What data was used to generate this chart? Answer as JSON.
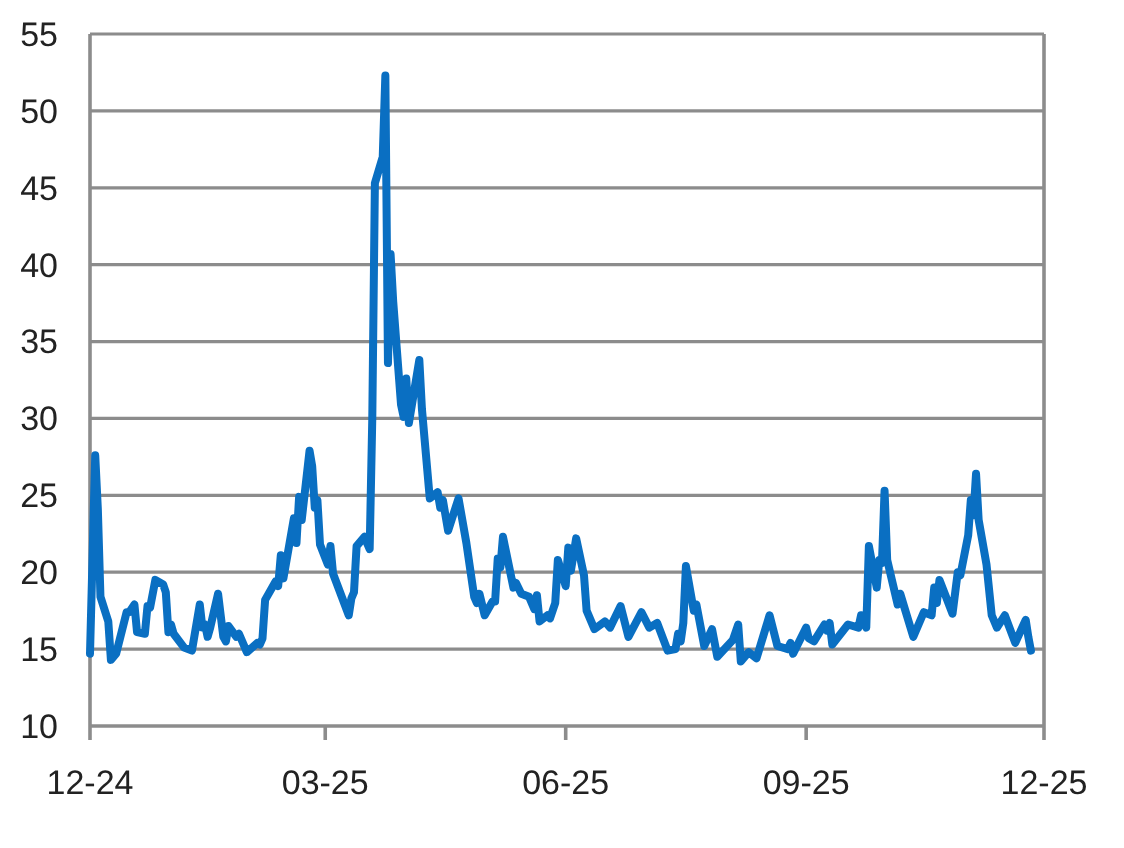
{
  "chart_data": {
    "type": "line",
    "grid": "y",
    "xlim": [
      "2024-12-16",
      "2025-12-16"
    ],
    "xticks": [
      {
        "value": "2024-12-16",
        "label": "12-24"
      },
      {
        "value": "2025-03-16",
        "label": "03-25"
      },
      {
        "value": "2025-06-16",
        "label": "06-25"
      },
      {
        "value": "2025-09-16",
        "label": "09-25"
      },
      {
        "value": "2025-12-16",
        "label": "12-25"
      }
    ],
    "ylim": [
      10,
      55
    ],
    "yticks": [
      10,
      15,
      20,
      25,
      30,
      35,
      40,
      45,
      50,
      55
    ],
    "series": [
      {
        "color": "#0a6fc2",
        "x": [
          "2024-12-16",
          "2024-12-18",
          "2024-12-19",
          "2024-12-20",
          "2024-12-23",
          "2024-12-24",
          "2024-12-26",
          "2024-12-30",
          "2024-12-31",
          "2025-01-02",
          "2025-01-03",
          "2025-01-06",
          "2025-01-07",
          "2025-01-08",
          "2025-01-10",
          "2025-01-13",
          "2025-01-14",
          "2025-01-15",
          "2025-01-16",
          "2025-01-17",
          "2025-01-21",
          "2025-01-24",
          "2025-01-27",
          "2025-01-28",
          "2025-01-29",
          "2025-01-30",
          "2025-01-31",
          "2025-02-03",
          "2025-02-05",
          "2025-02-06",
          "2025-02-07",
          "2025-02-10",
          "2025-02-11",
          "2025-02-14",
          "2025-02-18",
          "2025-02-19",
          "2025-02-20",
          "2025-02-21",
          "2025-02-25",
          "2025-02-26",
          "2025-02-27",
          "2025-02-28",
          "2025-03-04",
          "2025-03-05",
          "2025-03-06",
          "2025-03-07",
          "2025-03-10",
          "2025-03-11",
          "2025-03-12",
          "2025-03-13",
          "2025-03-14",
          "2025-03-17",
          "2025-03-18",
          "2025-03-19",
          "2025-03-25",
          "2025-03-26",
          "2025-03-27",
          "2025-03-28",
          "2025-03-31",
          "2025-04-02",
          "2025-04-03",
          "2025-04-04",
          "2025-04-07",
          "2025-04-08",
          "2025-04-09",
          "2025-04-10",
          "2025-04-11",
          "2025-04-14",
          "2025-04-15",
          "2025-04-16",
          "2025-04-17",
          "2025-04-21",
          "2025-04-22",
          "2025-04-25",
          "2025-04-28",
          "2025-04-29",
          "2025-04-30",
          "2025-05-02",
          "2025-05-06",
          "2025-05-09",
          "2025-05-12",
          "2025-05-13",
          "2025-05-14",
          "2025-05-16",
          "2025-05-19",
          "2025-05-20",
          "2025-05-21",
          "2025-05-22",
          "2025-05-23",
          "2025-05-27",
          "2025-05-28",
          "2025-05-30",
          "2025-06-02",
          "2025-06-04",
          "2025-06-05",
          "2025-06-06",
          "2025-06-09",
          "2025-06-10",
          "2025-06-12",
          "2025-06-13",
          "2025-06-16",
          "2025-06-17",
          "2025-06-18",
          "2025-06-20",
          "2025-06-23",
          "2025-06-24",
          "2025-06-27",
          "2025-07-01",
          "2025-07-03",
          "2025-07-07",
          "2025-07-10",
          "2025-07-15",
          "2025-07-18",
          "2025-07-21",
          "2025-07-25",
          "2025-07-28",
          "2025-07-29",
          "2025-07-30",
          "2025-07-31",
          "2025-08-01",
          "2025-08-04",
          "2025-08-05",
          "2025-08-08",
          "2025-08-11",
          "2025-08-13",
          "2025-08-19",
          "2025-08-21",
          "2025-08-22",
          "2025-08-25",
          "2025-08-28",
          "2025-09-02",
          "2025-09-05",
          "2025-09-09",
          "2025-09-10",
          "2025-09-11",
          "2025-09-16",
          "2025-09-17",
          "2025-09-19",
          "2025-09-23",
          "2025-09-24",
          "2025-09-25",
          "2025-09-26",
          "2025-10-02",
          "2025-10-06",
          "2025-10-07",
          "2025-10-09",
          "2025-10-10",
          "2025-10-13",
          "2025-10-14",
          "2025-10-15",
          "2025-10-16",
          "2025-10-17",
          "2025-10-21",
          "2025-10-22",
          "2025-10-27",
          "2025-10-31",
          "2025-11-03",
          "2025-11-04",
          "2025-11-05",
          "2025-11-06",
          "2025-11-11",
          "2025-11-13",
          "2025-11-14",
          "2025-11-17",
          "2025-11-18",
          "2025-11-19",
          "2025-11-20",
          "2025-11-21",
          "2025-11-24",
          "2025-11-26",
          "2025-11-28",
          "2025-12-01",
          "2025-12-05",
          "2025-12-09",
          "2025-12-10",
          "2025-12-11"
        ],
        "values": [
          14.7,
          27.6,
          24.1,
          18.4,
          16.8,
          14.3,
          14.7,
          17.4,
          17.4,
          17.9,
          16.1,
          16.0,
          17.8,
          17.7,
          19.5,
          19.2,
          18.7,
          16.1,
          16.6,
          16.0,
          15.1,
          14.9,
          17.9,
          16.4,
          16.6,
          15.8,
          16.4,
          18.6,
          15.8,
          15.5,
          16.5,
          15.8,
          16.0,
          14.8,
          15.4,
          15.3,
          15.7,
          18.2,
          19.4,
          19.1,
          21.1,
          19.6,
          23.5,
          21.9,
          24.9,
          23.4,
          27.9,
          26.9,
          24.2,
          24.7,
          21.8,
          20.5,
          21.7,
          19.9,
          17.2,
          18.3,
          18.7,
          21.7,
          22.3,
          21.5,
          30.0,
          45.3,
          47.0,
          52.3,
          33.6,
          40.7,
          37.6,
          30.9,
          30.1,
          32.6,
          29.7,
          33.8,
          30.6,
          24.8,
          25.2,
          24.2,
          24.7,
          22.7,
          24.8,
          21.9,
          18.4,
          18.0,
          18.6,
          17.2,
          18.1,
          18.1,
          20.9,
          20.3,
          22.3,
          19.0,
          19.3,
          18.6,
          18.4,
          17.6,
          18.5,
          16.8,
          17.2,
          17.0,
          18.0,
          20.8,
          19.1,
          21.6,
          20.1,
          22.2,
          19.8,
          17.5,
          16.3,
          16.8,
          16.4,
          17.8,
          15.8,
          17.4,
          16.4,
          16.7,
          14.9,
          15.0,
          16.0,
          15.5,
          16.7,
          20.4,
          17.5,
          17.9,
          15.2,
          16.3,
          14.5,
          15.6,
          16.6,
          14.2,
          14.8,
          14.4,
          17.2,
          15.2,
          15.0,
          15.4,
          14.7,
          16.4,
          15.7,
          15.5,
          16.6,
          16.2,
          16.7,
          15.3,
          16.6,
          16.4,
          17.2,
          16.4,
          21.7,
          19.0,
          20.8,
          20.6,
          25.3,
          20.8,
          17.9,
          18.6,
          15.8,
          17.4,
          17.2,
          19.0,
          18.0,
          19.5,
          17.3,
          20.0,
          19.8,
          22.4,
          24.7,
          23.7,
          26.4,
          23.4,
          20.5,
          17.2,
          16.4,
          17.2,
          15.4,
          16.9,
          15.8,
          14.9
        ]
      }
    ]
  }
}
